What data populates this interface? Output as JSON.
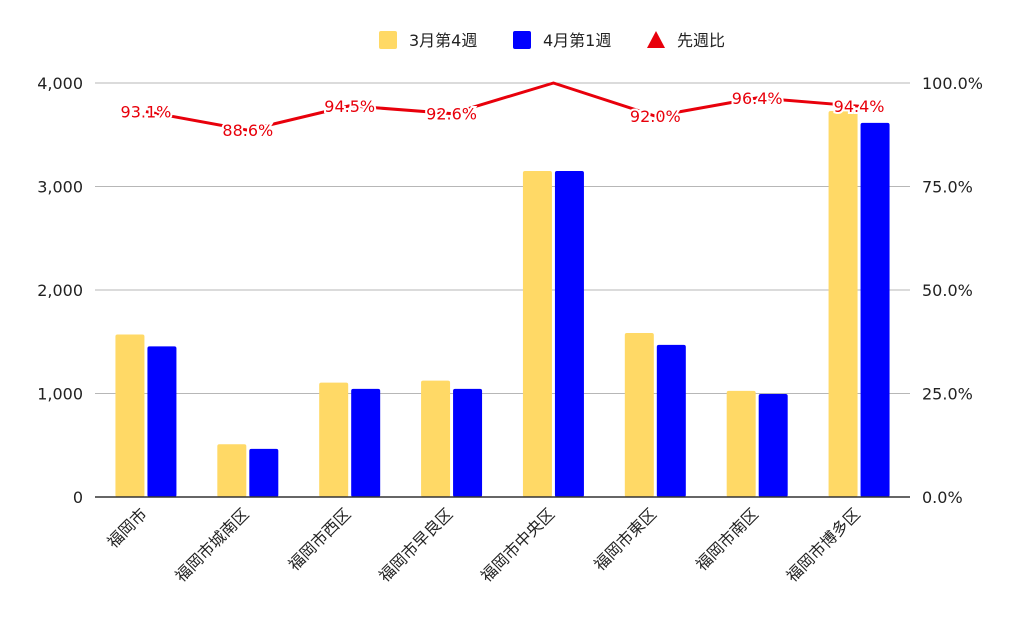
{
  "chart_data": {
    "type": "bar",
    "categories": [
      "福岡市",
      "福岡市城南区",
      "福岡市西区",
      "福岡市早良区",
      "福岡市中央区",
      "福岡市東区",
      "福岡市南区",
      "福岡市博多区"
    ],
    "series": [
      {
        "name": "3月第4週",
        "type": "bar",
        "axis": "left",
        "color": "#ffd966",
        "values": [
          1570,
          510,
          1105,
          1125,
          3150,
          1585,
          1025,
          3730
        ]
      },
      {
        "name": "4月第1週",
        "type": "bar",
        "axis": "left",
        "color": "#0000ff",
        "values": [
          1455,
          465,
          1045,
          1045,
          3150,
          1470,
          995,
          3615
        ]
      },
      {
        "name": "先週比",
        "type": "line",
        "axis": "right",
        "color": "#e8000b",
        "values": [
          93.1,
          88.6,
          94.5,
          92.6,
          100.0,
          92.0,
          96.4,
          94.4
        ],
        "data_labels": [
          "93.1%",
          "88.6%",
          "94.5%",
          "92.6%",
          "",
          "92.0%",
          "96.4%",
          "94.4%"
        ]
      }
    ],
    "left_axis": {
      "ylim": [
        0,
        4000
      ],
      "ticks": [
        "0",
        "1,000",
        "2,000",
        "3,000",
        "4,000"
      ],
      "tick_values": [
        0,
        1000,
        2000,
        3000,
        4000
      ]
    },
    "right_axis": {
      "ylim": [
        0,
        100
      ],
      "ticks": [
        "0.0%",
        "25.0%",
        "50.0%",
        "75.0%",
        "100.0%"
      ],
      "tick_values": [
        0,
        25,
        50,
        75,
        100
      ]
    },
    "legend_position": "top",
    "grid": true
  }
}
